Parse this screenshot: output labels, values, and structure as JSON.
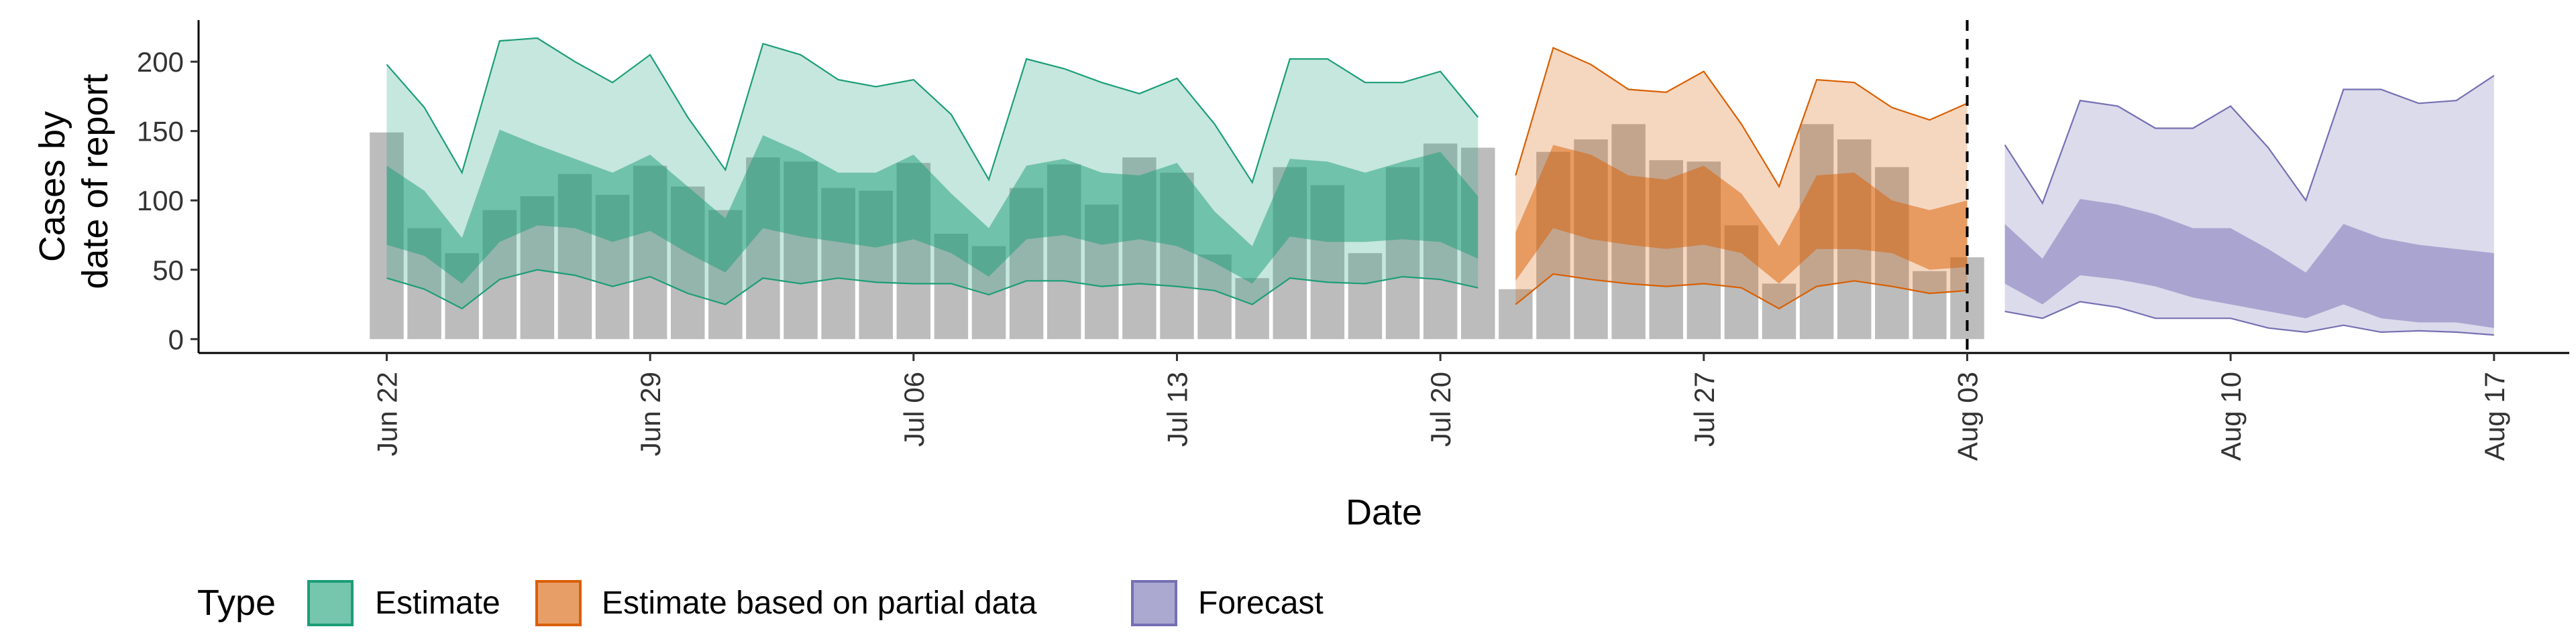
{
  "chart_data": {
    "type": "area",
    "xlabel": "Date",
    "ylabel_lines": [
      "Cases by",
      "date of report"
    ],
    "ylim": [
      -10,
      230
    ],
    "xlim": [
      "2020-06-17",
      "2020-08-19"
    ],
    "y_ticks": [
      0,
      50,
      100,
      150,
      200
    ],
    "x_ticks": [
      {
        "date": "2020-06-22",
        "label": "Jun 22"
      },
      {
        "date": "2020-06-29",
        "label": "Jun 29"
      },
      {
        "date": "2020-07-06",
        "label": "Jul 06"
      },
      {
        "date": "2020-07-13",
        "label": "Jul 13"
      },
      {
        "date": "2020-07-20",
        "label": "Jul 20"
      },
      {
        "date": "2020-07-27",
        "label": "Jul 27"
      },
      {
        "date": "2020-08-03",
        "label": "Aug 03"
      },
      {
        "date": "2020-08-10",
        "label": "Aug 10"
      },
      {
        "date": "2020-08-17",
        "label": "Aug 17"
      }
    ],
    "vline_date": "2020-08-03",
    "legend": {
      "title": "Type",
      "position": "bottom",
      "items": [
        {
          "label": "Estimate",
          "color": "#1B9E77"
        },
        {
          "label": "Estimate based on partial data",
          "color": "#D95F02"
        },
        {
          "label": "Forecast",
          "color": "#7570B3"
        }
      ]
    },
    "bars": {
      "color": "#a6a6a6",
      "dates": [
        "2020-06-22",
        "2020-06-23",
        "2020-06-24",
        "2020-06-25",
        "2020-06-26",
        "2020-06-27",
        "2020-06-28",
        "2020-06-29",
        "2020-06-30",
        "2020-07-01",
        "2020-07-02",
        "2020-07-03",
        "2020-07-04",
        "2020-07-05",
        "2020-07-06",
        "2020-07-07",
        "2020-07-08",
        "2020-07-09",
        "2020-07-10",
        "2020-07-11",
        "2020-07-12",
        "2020-07-13",
        "2020-07-14",
        "2020-07-15",
        "2020-07-16",
        "2020-07-17",
        "2020-07-18",
        "2020-07-19",
        "2020-07-20",
        "2020-07-21",
        "2020-07-22",
        "2020-07-23",
        "2020-07-24",
        "2020-07-25",
        "2020-07-26",
        "2020-07-27",
        "2020-07-28",
        "2020-07-29",
        "2020-07-30",
        "2020-07-31",
        "2020-08-01",
        "2020-08-02",
        "2020-08-03"
      ],
      "values": [
        149,
        80,
        62,
        93,
        103,
        119,
        104,
        125,
        110,
        93,
        131,
        128,
        109,
        107,
        127,
        76,
        67,
        109,
        126,
        97,
        131,
        120,
        61,
        44,
        124,
        111,
        62,
        124,
        141,
        138,
        36,
        135,
        144,
        155,
        129,
        128,
        82,
        40,
        155,
        144,
        124,
        49,
        59
      ]
    },
    "series": [
      {
        "name": "Estimate",
        "color": "#1B9E77",
        "dates": [
          "2020-06-22",
          "2020-06-23",
          "2020-06-24",
          "2020-06-25",
          "2020-06-26",
          "2020-06-27",
          "2020-06-28",
          "2020-06-29",
          "2020-06-30",
          "2020-07-01",
          "2020-07-02",
          "2020-07-03",
          "2020-07-04",
          "2020-07-05",
          "2020-07-06",
          "2020-07-07",
          "2020-07-08",
          "2020-07-09",
          "2020-07-10",
          "2020-07-11",
          "2020-07-12",
          "2020-07-13",
          "2020-07-14",
          "2020-07-15",
          "2020-07-16",
          "2020-07-17",
          "2020-07-18",
          "2020-07-19",
          "2020-07-20",
          "2020-07-21"
        ],
        "lower90": [
          44,
          36,
          22,
          43,
          50,
          46,
          38,
          45,
          33,
          25,
          44,
          40,
          44,
          41,
          40,
          40,
          32,
          42,
          42,
          38,
          40,
          38,
          35,
          25,
          44,
          41,
          40,
          45,
          43,
          37
        ],
        "lower50": [
          68,
          60,
          40,
          70,
          82,
          80,
          70,
          78,
          62,
          48,
          80,
          74,
          70,
          66,
          72,
          62,
          45,
          72,
          75,
          68,
          72,
          67,
          55,
          40,
          74,
          70,
          70,
          72,
          70,
          58
        ],
        "upper50": [
          125,
          107,
          73,
          151,
          140,
          130,
          120,
          133,
          110,
          87,
          147,
          135,
          120,
          120,
          133,
          105,
          80,
          125,
          130,
          120,
          118,
          127,
          92,
          67,
          130,
          128,
          120,
          128,
          135,
          103
        ],
        "upper90": [
          198,
          167,
          120,
          215,
          217,
          200,
          185,
          205,
          160,
          122,
          213,
          205,
          187,
          182,
          187,
          162,
          115,
          202,
          195,
          185,
          177,
          188,
          155,
          113,
          202,
          202,
          185,
          185,
          193,
          160
        ]
      },
      {
        "name": "Estimate based on partial data",
        "color": "#D95F02",
        "dates": [
          "2020-07-22",
          "2020-07-23",
          "2020-07-24",
          "2020-07-25",
          "2020-07-26",
          "2020-07-27",
          "2020-07-28",
          "2020-07-29",
          "2020-07-30",
          "2020-07-31",
          "2020-08-01",
          "2020-08-02",
          "2020-08-03"
        ],
        "lower90": [
          25,
          47,
          43,
          40,
          38,
          40,
          37,
          22,
          38,
          42,
          38,
          33,
          35
        ],
        "lower50": [
          42,
          80,
          72,
          68,
          65,
          68,
          62,
          40,
          65,
          65,
          62,
          50,
          52
        ],
        "upper50": [
          77,
          140,
          133,
          118,
          115,
          125,
          105,
          67,
          118,
          120,
          100,
          93,
          100
        ],
        "upper90": [
          118,
          210,
          198,
          180,
          178,
          193,
          155,
          110,
          187,
          185,
          167,
          158,
          170
        ]
      },
      {
        "name": "Forecast",
        "color": "#7570B3",
        "dates": [
          "2020-08-04",
          "2020-08-05",
          "2020-08-06",
          "2020-08-07",
          "2020-08-08",
          "2020-08-09",
          "2020-08-10",
          "2020-08-11",
          "2020-08-12",
          "2020-08-13",
          "2020-08-14",
          "2020-08-15",
          "2020-08-16",
          "2020-08-17"
        ],
        "lower90": [
          20,
          15,
          27,
          23,
          15,
          15,
          15,
          8,
          5,
          10,
          5,
          6,
          5,
          3
        ],
        "lower50": [
          40,
          25,
          46,
          43,
          38,
          30,
          25,
          20,
          15,
          25,
          15,
          12,
          12,
          8
        ],
        "upper50": [
          83,
          58,
          101,
          97,
          90,
          80,
          80,
          65,
          48,
          83,
          73,
          68,
          65,
          62
        ],
        "upper90": [
          140,
          98,
          172,
          168,
          152,
          152,
          168,
          138,
          100,
          180,
          180,
          170,
          172,
          190
        ]
      }
    ]
  }
}
